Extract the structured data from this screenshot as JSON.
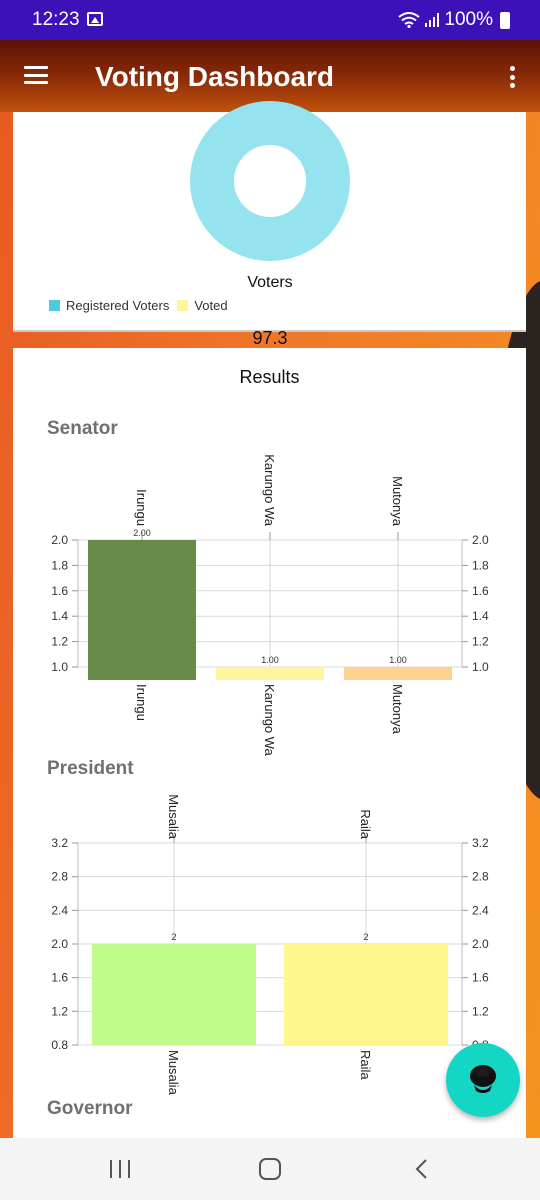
{
  "status_bar": {
    "time": "12:23",
    "battery": "100%"
  },
  "app_bar": {
    "title": "Voting Dashboard"
  },
  "voters_card": {
    "center_label": "Voters",
    "value": "97.3",
    "legend": [
      {
        "label": "Registered Voters",
        "color": "#4fc9de"
      },
      {
        "label": "Voted",
        "color": "#fff59d"
      }
    ],
    "donut_color": "#95e3ee"
  },
  "results": {
    "title": "Results",
    "sections": [
      {
        "title": "Senator"
      },
      {
        "title": "President"
      },
      {
        "title": "Governor"
      }
    ]
  },
  "chart_data": [
    {
      "type": "bar",
      "title": "Senator",
      "categories": [
        "Irungu",
        "Karungo Wa",
        "Mutonya"
      ],
      "values": [
        2.0,
        1.0,
        1.0
      ],
      "value_labels": [
        "2.00",
        "1.00",
        "1.00"
      ],
      "colors": [
        "#678b49",
        "#fff59d",
        "#fdd18f"
      ],
      "ylim": [
        1.0,
        2.0
      ],
      "yticks": [
        "1.0",
        "1.2",
        "1.4",
        "1.6",
        "1.8",
        "2.0"
      ],
      "grid": true,
      "legend": "none"
    },
    {
      "type": "bar",
      "title": "President",
      "categories": [
        "Musalia",
        "Raila"
      ],
      "values": [
        2,
        2
      ],
      "value_labels": [
        "2",
        "2"
      ],
      "colors": [
        "#c1fb8b",
        "#fff78b"
      ],
      "ylim": [
        0.8,
        3.2
      ],
      "yticks": [
        "0.8",
        "1.2",
        "1.6",
        "2.0",
        "2.4",
        "2.8",
        "3.2"
      ],
      "grid": true,
      "legend": "none"
    }
  ]
}
